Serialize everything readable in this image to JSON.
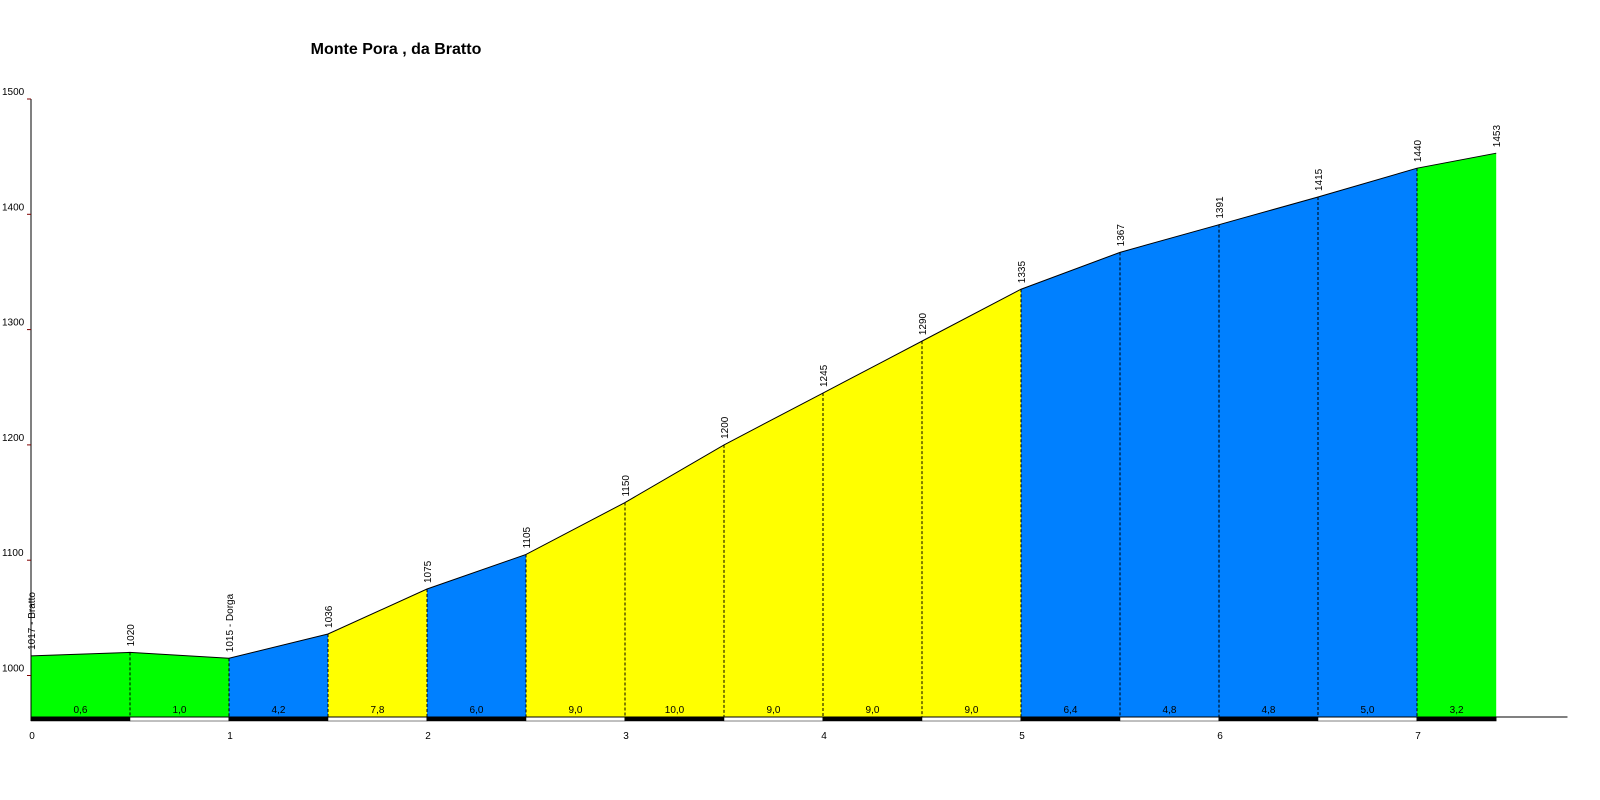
{
  "chart_data": {
    "type": "elevation-profile",
    "title": "Monte Pora , da Bratto",
    "x": [
      0,
      0.5,
      1,
      1.5,
      2,
      2.5,
      3,
      3.5,
      4,
      4.5,
      5,
      5.5,
      6,
      6.5,
      7,
      7.4
    ],
    "values": [
      1017,
      1020,
      1015,
      1036,
      1075,
      1105,
      1150,
      1200,
      1245,
      1290,
      1335,
      1367,
      1391,
      1415,
      1440,
      1453
    ],
    "value_labels": [
      "1017 - Bratto",
      "1020",
      "1015 - Dorga",
      "1036",
      "1075",
      "1105",
      "1150",
      "1200",
      "1245",
      "1290",
      "1335",
      "1367",
      "1391",
      "1415",
      "1440",
      "1453"
    ],
    "gradients": [
      0.6,
      1.0,
      4.2,
      7.8,
      6.0,
      9.0,
      10.0,
      9.0,
      9.0,
      9.0,
      6.4,
      4.8,
      4.8,
      5.0,
      3.2
    ],
    "gradient_labels": [
      "0,6",
      "1,0",
      "4,2",
      "7,8",
      "6,0",
      "9,0",
      "10,0",
      "9,0",
      "9,0",
      "9,0",
      "6,4",
      "4,8",
      "4,8",
      "5,0",
      "3,2"
    ],
    "segment_colors": [
      "#00ff00",
      "#00ff00",
      "#0080ff",
      "#ffff00",
      "#0080ff",
      "#ffff00",
      "#ffff00",
      "#ffff00",
      "#ffff00",
      "#ffff00",
      "#0080ff",
      "#0080ff",
      "#0080ff",
      "#0080ff",
      "#00ff00"
    ],
    "xlim": [
      0,
      7.76
    ],
    "xticks": [
      0,
      1,
      2,
      3,
      4,
      5,
      6,
      7
    ],
    "ylim": [
      964,
      1500
    ],
    "yticks": [
      1000,
      1100,
      1200,
      1300,
      1400,
      1500
    ]
  }
}
